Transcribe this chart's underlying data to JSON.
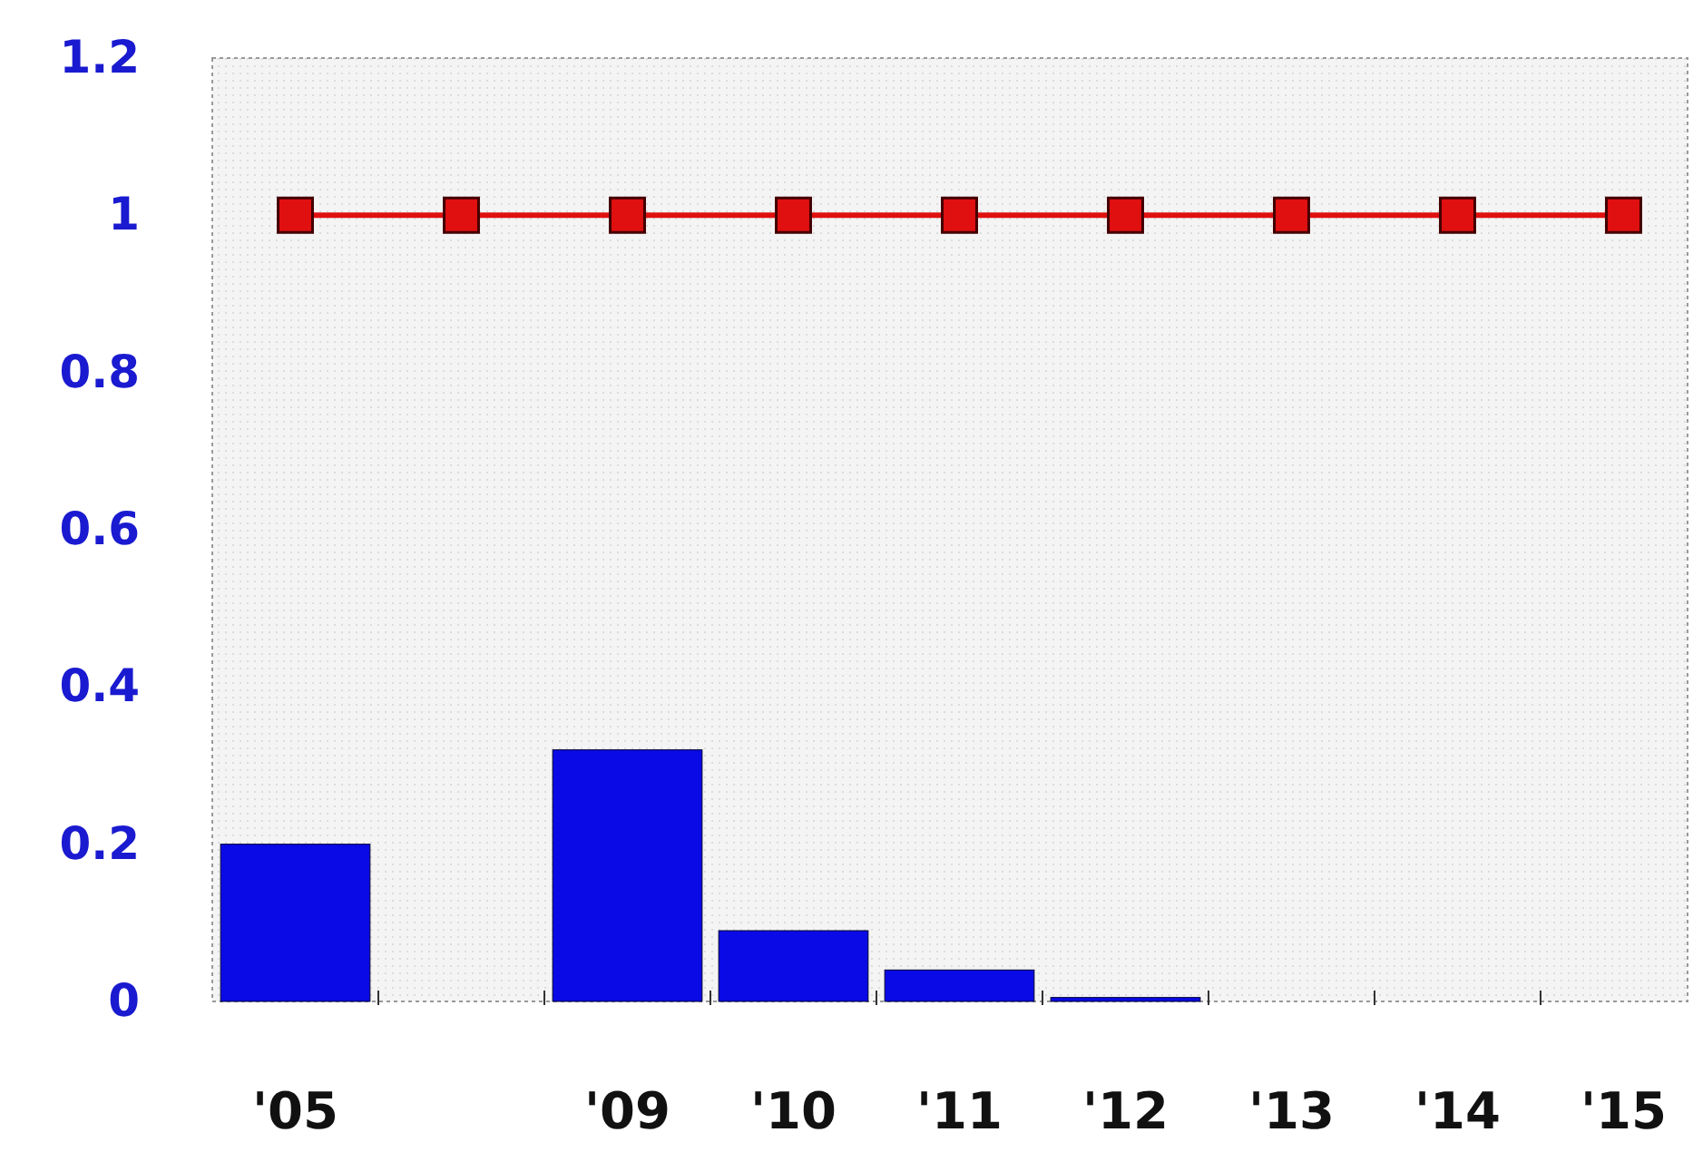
{
  "chart_data": {
    "type": "bar",
    "categories": [
      "'05",
      null,
      "'09",
      "'10",
      "'11",
      "'12",
      "'13",
      "'14",
      "'15"
    ],
    "series": [
      {
        "color": "#0a0ae6",
        "values": [
          0.2,
          0,
          0.32,
          0.09,
          0.04,
          0.005,
          0,
          0,
          0
        ]
      },
      {
        "type": "line",
        "color": "#e01010",
        "marker": "square",
        "values": [
          1,
          1,
          1,
          1,
          1,
          1,
          1,
          1,
          1
        ]
      }
    ],
    "ylim": [
      0,
      1.2
    ],
    "yticks": [
      0,
      0.2,
      0.4,
      0.6,
      0.8,
      1,
      1.2
    ]
  }
}
